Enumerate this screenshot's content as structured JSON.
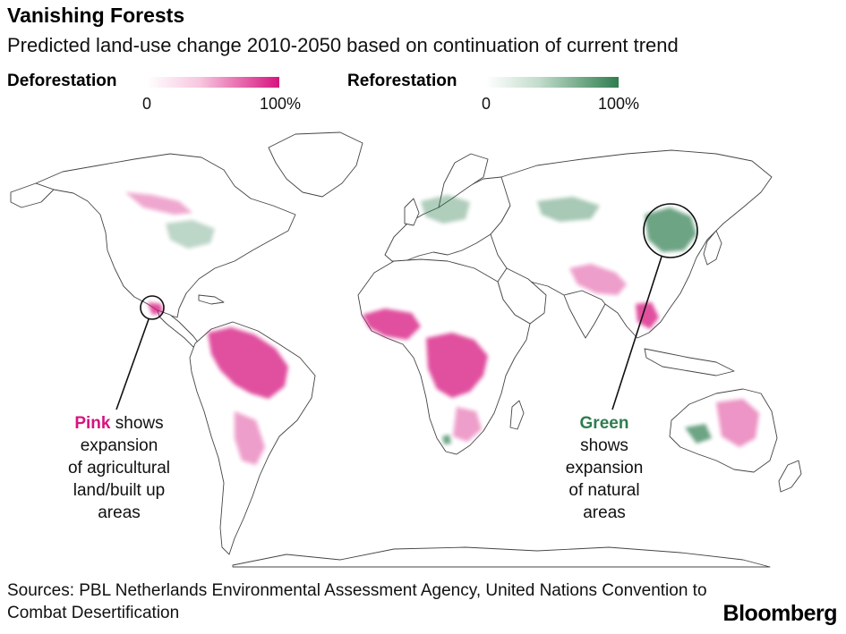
{
  "title": "Vanishing Forests",
  "subtitle": "Predicted land-use change 2010-2050 based on continuation of current trend",
  "legend": {
    "deforestation": {
      "label": "Deforestation",
      "min_label": "0",
      "max_label": "100%",
      "color": "#d6147f"
    },
    "reforestation": {
      "label": "Reforestation",
      "min_label": "0",
      "max_label": "100%",
      "color": "#2f7d4f"
    }
  },
  "callouts": {
    "pink": {
      "keyword": "Pink",
      "line1_rest": " shows",
      "line2": "expansion",
      "line3": "of agricultural",
      "line4": "land/built up",
      "line5": "areas"
    },
    "green": {
      "keyword": "Green",
      "line2": "shows",
      "line3": "expansion",
      "line4": "of natural",
      "line5": "areas"
    }
  },
  "sources": "Sources: PBL Netherlands Environmental Assessment Agency, United Nations Convention to Combat Desertification",
  "brand": "Bloomberg"
}
